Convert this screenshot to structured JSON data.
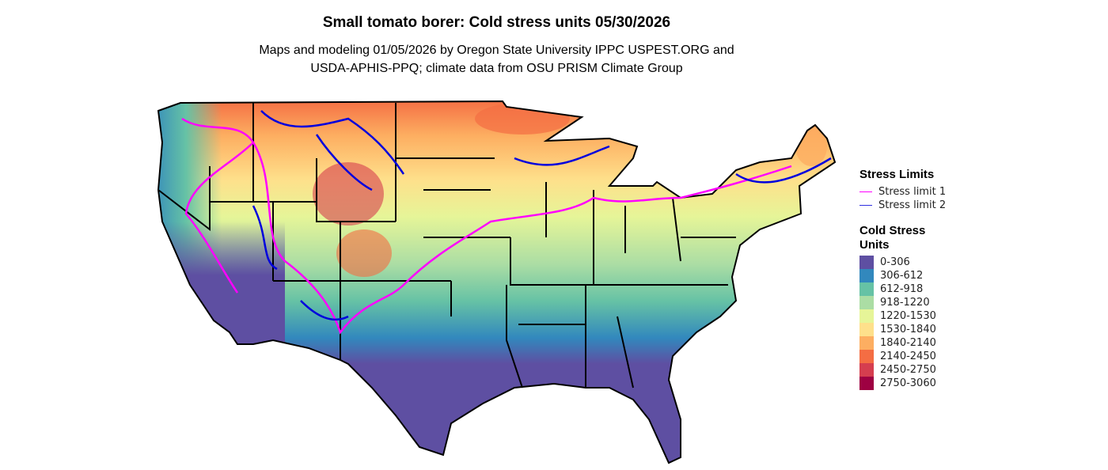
{
  "title": "Small tomato borer: Cold stress units 05/30/2026",
  "subtitle_lines": [
    "Maps and modeling 01/05/2026 by Oregon State University IPPC USPEST.ORG and",
    "USDA-APHIS-PPQ; climate data from OSU PRISM Climate Group"
  ],
  "legend": {
    "stress_title": "Stress Limits",
    "stress_items": [
      {
        "label": "Stress limit 1",
        "color": "#FF00FF"
      },
      {
        "label": "Stress limit 2",
        "color": "#0000E0"
      }
    ],
    "units_title_lines": [
      "Cold Stress",
      "Units"
    ],
    "bins": [
      {
        "label": "0-306",
        "color": "#5E4FA2"
      },
      {
        "label": "306-612",
        "color": "#3288BD"
      },
      {
        "label": "612-918",
        "color": "#66C2A5"
      },
      {
        "label": "918-1220",
        "color": "#ABDDA4"
      },
      {
        "label": "1220-1530",
        "color": "#E6F598"
      },
      {
        "label": "1530-1840",
        "color": "#FEE08B"
      },
      {
        "label": "1840-2140",
        "color": "#FDAE61"
      },
      {
        "label": "2140-2450",
        "color": "#F46D43"
      },
      {
        "label": "2450-2750",
        "color": "#D53E4F"
      },
      {
        "label": "2750-3060",
        "color": "#9E0142"
      }
    ]
  }
}
